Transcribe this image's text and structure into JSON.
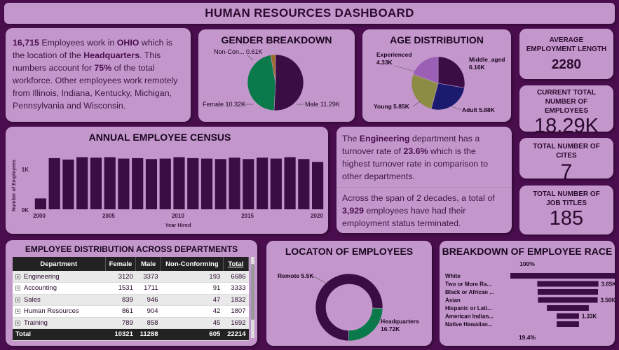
{
  "dashboard_title": "HUMAN RESOURCES DASHBOARD",
  "headquarters_text": {
    "count": "16,715",
    "p1": " Employees work in ",
    "state": "OHIO",
    "p2": " which is the location of the ",
    "hq": "Headquarters",
    "p3": ". This numbers account for ",
    "pct": "75%",
    "p4": " of the total workforce. Other employees work remotely from Illinois, Indiana, Kentucky, Michigan, Pennsylvania and Wisconsin."
  },
  "gender": {
    "title": "GENDER BREAKDOWN",
    "labels": [
      "Non-Con... 0.61K",
      "Female 10.32K",
      "Male 11.29K"
    ]
  },
  "age": {
    "title": "AGE DISTRIBUTION",
    "labels": {
      "experienced": "Experienced",
      "experienced_val": "4.33K",
      "middle": "Middle_aged",
      "middle_val": "6.16K",
      "young": "Young 5.85K",
      "adult": "Adult 5.88K"
    }
  },
  "kpis": [
    {
      "label": "AVERAGE EMPLOYMENT LENGTH",
      "value": "2280"
    },
    {
      "label": "CURRENT TOTAL NUMBER OF EMPLOYEES",
      "value": "18.29K"
    },
    {
      "label": "TOTAL NUMBER OF CITES",
      "value": "7"
    },
    {
      "label": "TOTAL NUMBER OF JOB TITLES",
      "value": "185"
    }
  ],
  "census": {
    "title": "ANNUAL EMPLOYEE CENSUS",
    "ylabel": "Number of Employees",
    "xlabel": "Year Hired",
    "yticks": [
      "0K",
      "1K"
    ],
    "xticks": [
      "2000",
      "2005",
      "2010",
      "2015",
      "2020"
    ]
  },
  "turnover_text": {
    "p1": "The ",
    "dept": "Engineering",
    "p2": " department has a turnover rate of  ",
    "rate": "23.6%",
    "p3": " which is the highest turnover rate in comparison to other departments."
  },
  "terminated_text": {
    "p1": "Across the span of 2 decades, a total of ",
    "count": "3,929",
    "p2": " employees have had their employment status terminated."
  },
  "departments": {
    "title": "EMPLOYEE DISTRIBUTION ACROSS DEPARTMENTS",
    "columns": [
      "Department",
      "Female",
      "Male",
      "Non-Conforming",
      "Total"
    ],
    "rows": [
      [
        "Engineering",
        "3120",
        "3373",
        "193",
        "6686"
      ],
      [
        "Accounting",
        "1531",
        "1711",
        "91",
        "3333"
      ],
      [
        "Sales",
        "839",
        "946",
        "47",
        "1832"
      ],
      [
        "Human Resources",
        "861",
        "904",
        "42",
        "1807"
      ],
      [
        "Training",
        "789",
        "858",
        "45",
        "1692"
      ]
    ],
    "total": [
      "Total",
      "10321",
      "11288",
      "605",
      "22214"
    ]
  },
  "location": {
    "title": "LOCATON OF EMPLOYEES",
    "labels": [
      "Remote 5.5K",
      "Headquarters",
      "16.72K"
    ]
  },
  "race": {
    "title": "BREAKDOWN OF EMPLOYEE RACE",
    "top_pct": "100%",
    "bottom_pct": "19.4%",
    "value_labels": [
      "3.65K",
      "3.56K",
      "1.33K"
    ]
  },
  "chart_data": [
    {
      "type": "pie",
      "title": "GENDER BREAKDOWN",
      "categories": [
        "Male",
        "Female",
        "Non-Conforming"
      ],
      "values": [
        11.29,
        10.32,
        0.61
      ],
      "unit": "K",
      "colors": [
        "#3a0d45",
        "#0a7a4a",
        "#9c6b2e"
      ]
    },
    {
      "type": "pie",
      "title": "AGE DISTRIBUTION",
      "categories": [
        "Middle_aged",
        "Adult",
        "Young",
        "Experienced"
      ],
      "values": [
        6.16,
        5.88,
        5.85,
        4.33
      ],
      "unit": "K",
      "colors": [
        "#3a0d45",
        "#1a1a6e",
        "#8c8c45",
        "#9b5fb5"
      ]
    },
    {
      "type": "bar",
      "title": "ANNUAL EMPLOYEE CENSUS",
      "xlabel": "Year Hired",
      "ylabel": "Number of Employees",
      "categories": [
        "2000",
        "2001",
        "2002",
        "2003",
        "2004",
        "2005",
        "2006",
        "2007",
        "2008",
        "2009",
        "2010",
        "2011",
        "2012",
        "2013",
        "2014",
        "2015",
        "2016",
        "2017",
        "2018",
        "2019",
        "2020"
      ],
      "values": [
        230,
        1080,
        1050,
        1100,
        1090,
        1100,
        1070,
        1080,
        1060,
        1070,
        1100,
        1080,
        1070,
        1060,
        1090,
        1060,
        1090,
        1070,
        1100,
        1060,
        1000
      ],
      "ylim": [
        0,
        1300
      ],
      "color": "#3a0d45"
    },
    {
      "type": "pie",
      "title": "LOCATON OF EMPLOYEES",
      "categories": [
        "Headquarters",
        "Remote"
      ],
      "values": [
        16.72,
        5.5
      ],
      "unit": "K",
      "colors": [
        "#3a0d45",
        "#0a7a4a"
      ]
    },
    {
      "type": "bar",
      "title": "BREAKDOWN OF EMPLOYEE RACE",
      "categories": [
        "White",
        "Two or More Ra...",
        "Black or African ...",
        "Asian",
        "Hispanic or Lati...",
        "American Indian...",
        "Native Hawaiian..."
      ],
      "values": [
        6.86,
        3.65,
        3.6,
        3.56,
        2.5,
        1.33,
        1.33
      ],
      "unit": "K",
      "color": "#3a0d45"
    }
  ]
}
